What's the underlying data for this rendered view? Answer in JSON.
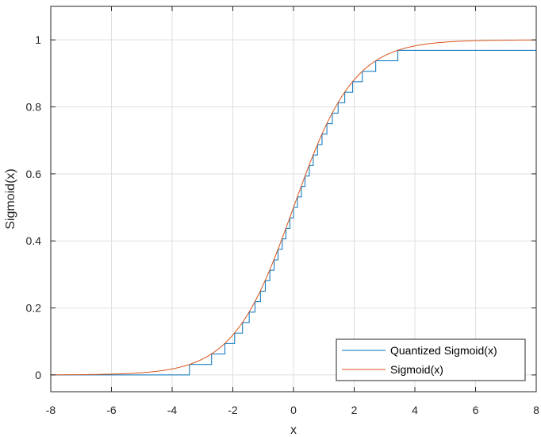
{
  "chart_data": {
    "type": "line",
    "xlabel": "x",
    "ylabel": "Sigmoid(x)",
    "xlim": [
      -8,
      8
    ],
    "ylim": [
      -0.05,
      1.1
    ],
    "grid": true,
    "legend_position": "bottom-right",
    "x_ticks": [
      "-8",
      "-6",
      "-4",
      "-2",
      "0",
      "2",
      "4",
      "6",
      "8"
    ],
    "y_ticks": [
      "0",
      "0.2",
      "0.4",
      "0.6",
      "0.8",
      "1"
    ],
    "series": [
      {
        "name": "Quantized Sigmoid(x)",
        "color": "#0072BD",
        "style": "step",
        "levels": [
          0,
          0.03125,
          0.0625,
          0.09375,
          0.125,
          0.15625,
          0.1875,
          0.21875,
          0.25,
          0.28125,
          0.3125,
          0.34375,
          0.375,
          0.40625,
          0.4375,
          0.46875,
          0.5,
          0.53125,
          0.5625,
          0.59375,
          0.625,
          0.65625,
          0.6875,
          0.71875,
          0.75,
          0.78125,
          0.8125,
          0.84375,
          0.875,
          0.90625,
          0.9375,
          0.96875
        ],
        "x_range": [
          -8,
          8
        ]
      },
      {
        "name": "Sigmoid(x)",
        "color": "#D95319",
        "function": "1/(1+exp(-x))",
        "x_range": [
          -8,
          8
        ]
      }
    ]
  }
}
